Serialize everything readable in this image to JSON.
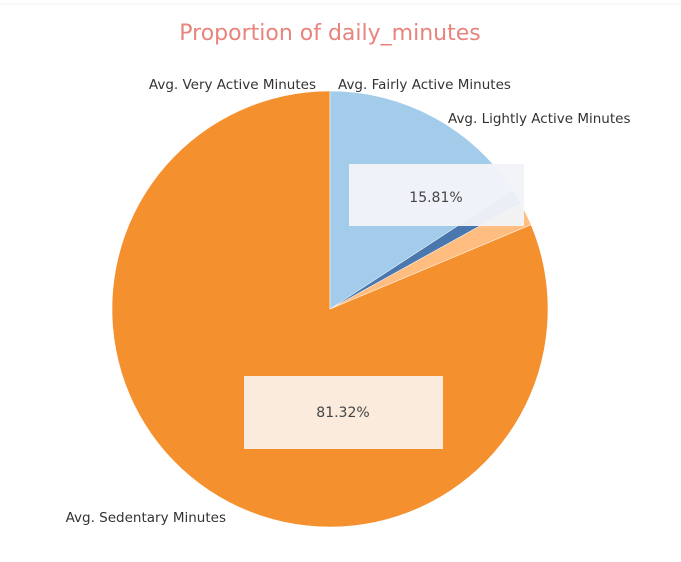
{
  "chart_data": {
    "type": "pie",
    "title": "Proportion of daily_minutes",
    "title_color": "#E8837D",
    "series": [
      {
        "name": "Avg. Sedentary Minutes",
        "value": 81.32,
        "color": "#F4902E",
        "data_label": "81.32%"
      },
      {
        "name": "Avg. Very Active Minutes",
        "value": 1.74,
        "color": "#FFBD80",
        "data_label": ""
      },
      {
        "name": "Avg. Fairly Active Minutes",
        "value": 1.13,
        "color": "#4A78AE",
        "data_label": ""
      },
      {
        "name": "Avg. Lightly Active Minutes",
        "value": 15.81,
        "color": "#A3CCEB",
        "data_label": "15.81%"
      }
    ],
    "legend": "none",
    "grid": false
  }
}
